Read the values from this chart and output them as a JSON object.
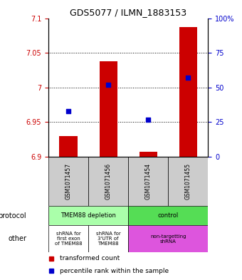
{
  "title": "GDS5077 / ILMN_1883153",
  "samples": [
    "GSM1071457",
    "GSM1071456",
    "GSM1071454",
    "GSM1071455"
  ],
  "bar_values": [
    6.93,
    7.038,
    6.907,
    7.087
  ],
  "blue_values": [
    33,
    52,
    27,
    57
  ],
  "ylim_left": [
    6.9,
    7.1
  ],
  "ylim_right": [
    0,
    100
  ],
  "yticks_left": [
    6.9,
    6.95,
    7.0,
    7.05,
    7.1
  ],
  "yticks_right": [
    0,
    25,
    50,
    75,
    100
  ],
  "ytick_labels_left": [
    "6.9",
    "6.95",
    "7",
    "7.05",
    "7.1"
  ],
  "ytick_labels_right": [
    "0",
    "25",
    "50",
    "75",
    "100%"
  ],
  "hlines": [
    6.95,
    7.0,
    7.05
  ],
  "bar_color": "#cc0000",
  "blue_color": "#0000cc",
  "bar_width": 0.45,
  "protocol_colors": [
    "#aaffaa",
    "#55dd55"
  ],
  "other_colors_left": "#ffffff",
  "other_color_right": "#dd55dd",
  "legend_red": "transformed count",
  "legend_blue": "percentile rank within the sample",
  "tick_color_left": "#cc0000",
  "tick_color_right": "#0000cc",
  "sample_bg": "#cccccc",
  "title_fontsize": 9
}
